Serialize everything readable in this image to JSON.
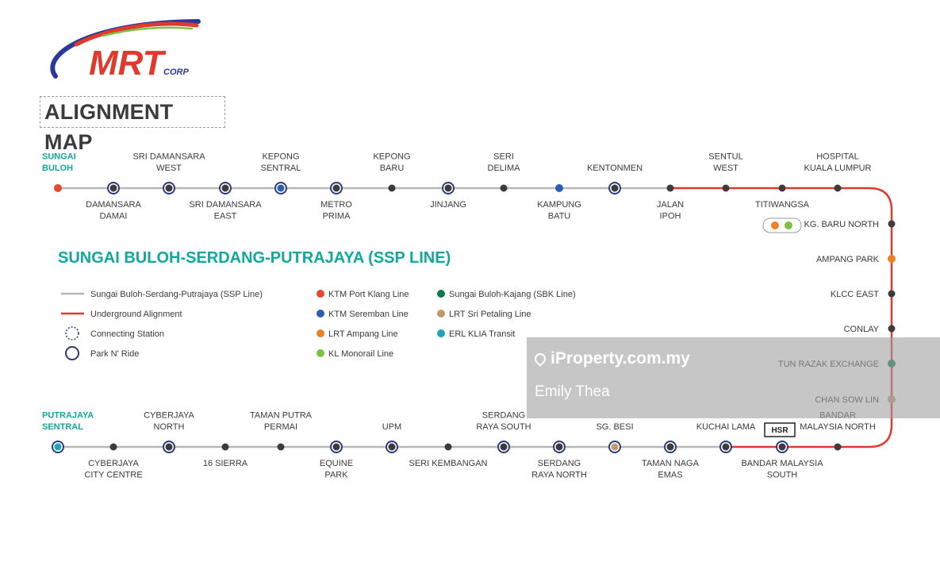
{
  "logo": {
    "brand": "MRT",
    "corp": "CORP"
  },
  "page_title": "ALIGNMENT MAP",
  "line_title": "SUNGAI BULOH-SERDANG-PUTRAJAYA (SSP LINE)",
  "colors": {
    "ssp_line": "#b7b7b7",
    "underground": "#e03a2f",
    "station": "#3b3b3b",
    "navy": "#2a3a7c",
    "teal_title": "#10a89a",
    "ktm_port_klang": "#e8472b",
    "ktm_seremban": "#2a5fb0",
    "lrt_ampang": "#ef7f22",
    "kl_monorail": "#7cc242",
    "sbk_line": "#0d7a45",
    "lrt_sri_petaling": "#c09a6b",
    "erl_klia": "#1aa6b5"
  },
  "legend": {
    "left": [
      {
        "label": "Sungai Buloh-Serdang-Putrajaya (SSP Line)",
        "symbol": "grey-line"
      },
      {
        "label": "Underground Alignment",
        "symbol": "red-line"
      },
      {
        "label": "Connecting Station",
        "symbol": "dotted-circle"
      },
      {
        "label": "Park N' Ride",
        "symbol": "navy-circle"
      }
    ],
    "mid": [
      {
        "label": "KTM Port Klang Line",
        "color": "#e8472b"
      },
      {
        "label": "KTM Seremban Line",
        "color": "#2a5fb0"
      },
      {
        "label": "LRT Ampang Line",
        "color": "#ef7f22"
      },
      {
        "label": "KL Monorail Line",
        "color": "#7cc242"
      }
    ],
    "right": [
      {
        "label": "Sungai Buloh-Kajang (SBK Line)",
        "color": "#0d7a45"
      },
      {
        "label": "LRT Sri Petaling Line",
        "color": "#c09a6b"
      },
      {
        "label": "ERL KLIA Transit",
        "color": "#1aa6b5"
      }
    ]
  },
  "stations_top": [
    {
      "name": [
        "SUNGAI",
        "BULOH"
      ],
      "pos": "above",
      "type": "terminus-red"
    },
    {
      "name": [
        "DAMANSARA",
        "DAMAI"
      ],
      "pos": "below",
      "type": "park-ride"
    },
    {
      "name": [
        "SRI DAMANSARA",
        "WEST"
      ],
      "pos": "above",
      "type": "park-ride"
    },
    {
      "name": [
        "SRI DAMANSARA",
        "EAST"
      ],
      "pos": "below",
      "type": "park-ride"
    },
    {
      "name": [
        "KEPONG",
        "SENTRAL"
      ],
      "pos": "above",
      "type": "interchange-blue"
    },
    {
      "name": [
        "METRO",
        "PRIMA"
      ],
      "pos": "below",
      "type": "park-ride"
    },
    {
      "name": [
        "KEPONG",
        "BARU"
      ],
      "pos": "above",
      "type": "plain"
    },
    {
      "name": [
        "JINJANG"
      ],
      "pos": "below",
      "type": "park-ride"
    },
    {
      "name": [
        "SERI",
        "DELIMA"
      ],
      "pos": "above",
      "type": "plain"
    },
    {
      "name": [
        "KAMPUNG",
        "BATU"
      ],
      "pos": "below",
      "type": "ktm-blue"
    },
    {
      "name": [
        "KENTONMEN"
      ],
      "pos": "above",
      "type": "park-ride"
    },
    {
      "name": [
        "JALAN",
        "IPOH"
      ],
      "pos": "below",
      "type": "plain"
    },
    {
      "name": [
        "SENTUL",
        "WEST"
      ],
      "pos": "above",
      "type": "plain"
    },
    {
      "name": [
        "TITIWANGSA"
      ],
      "pos": "below",
      "type": "plain"
    },
    {
      "name": [
        "HOSPITAL",
        "KUALA LUMPUR"
      ],
      "pos": "above",
      "type": "plain"
    }
  ],
  "stations_right": [
    {
      "name": "KG. BARU NORTH",
      "type": "plain"
    },
    {
      "name": "AMPANG PARK",
      "type": "ampang"
    },
    {
      "name": "KLCC EAST",
      "type": "plain"
    },
    {
      "name": "CONLAY",
      "type": "plain"
    },
    {
      "name": "TUN RAZAK EXCHANGE",
      "type": "sbk"
    },
    {
      "name": "CHAN SOW LIN",
      "type": "sri-petaling"
    }
  ],
  "stations_bottom": [
    {
      "name": [
        "PUTRAJAYA",
        "SENTRAL"
      ],
      "pos": "above",
      "type": "terminus-teal"
    },
    {
      "name": [
        "CYBERJAYA",
        "CITY CENTRE"
      ],
      "pos": "below",
      "type": "plain"
    },
    {
      "name": [
        "CYBERJAYA",
        "NORTH"
      ],
      "pos": "above",
      "type": "park-ride"
    },
    {
      "name": [
        "16 SIERRA"
      ],
      "pos": "below",
      "type": "plain"
    },
    {
      "name": [
        "TAMAN PUTRA",
        "PERMAI"
      ],
      "pos": "above",
      "type": "plain"
    },
    {
      "name": [
        "EQUINE",
        "PARK"
      ],
      "pos": "below",
      "type": "park-ride"
    },
    {
      "name": [
        "UPM"
      ],
      "pos": "above",
      "type": "park-ride"
    },
    {
      "name": [
        "SERI KEMBANGAN"
      ],
      "pos": "below",
      "type": "plain"
    },
    {
      "name": [
        "SERDANG",
        "RAYA SOUTH"
      ],
      "pos": "above",
      "type": "park-ride"
    },
    {
      "name": [
        "SERDANG",
        "RAYA NORTH"
      ],
      "pos": "below",
      "type": "park-ride"
    },
    {
      "name": [
        "SG. BESI"
      ],
      "pos": "above",
      "type": "sri-petaling-pr"
    },
    {
      "name": [
        "TAMAN NAGA",
        "EMAS"
      ],
      "pos": "below",
      "type": "park-ride"
    },
    {
      "name": [
        "KUCHAI LAMA"
      ],
      "pos": "above",
      "type": "park-ride"
    },
    {
      "name": [
        "BANDAR MALAYSIA",
        "SOUTH"
      ],
      "pos": "below",
      "type": "park-ride"
    },
    {
      "name": [
        "BANDAR",
        "MALAYSIA NORTH"
      ],
      "pos": "above",
      "type": "plain"
    }
  ],
  "hsr_badge": "HSR",
  "watermark": {
    "site": "iProperty.com.my",
    "agent": "Emily Thea"
  }
}
